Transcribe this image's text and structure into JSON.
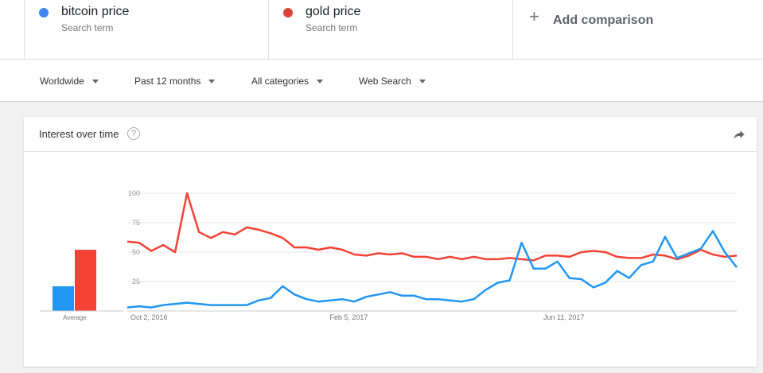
{
  "terms": [
    {
      "name": "bitcoin price",
      "sub": "Search term",
      "color": "#4285f4"
    },
    {
      "name": "gold price",
      "sub": "Search term",
      "color": "#db4437"
    }
  ],
  "add_comparison": "Add comparison",
  "filters": [
    "Worldwide",
    "Past 12 months",
    "All categories",
    "Web Search"
  ],
  "card": {
    "title": "Interest over time",
    "help": "?"
  },
  "average_label": "Average",
  "chart_data": {
    "type": "line",
    "title": "Interest over time",
    "ylim": [
      0,
      100
    ],
    "yticks": [
      25,
      50,
      75,
      100
    ],
    "xtick_labels": [
      "Oct 2, 2016",
      "Feb 5, 2017",
      "Jun 11, 2017"
    ],
    "xtick_index": [
      0,
      18,
      36
    ],
    "grid": true,
    "series": [
      {
        "name": "bitcoin price",
        "color": "#2196f3",
        "values": [
          3,
          4,
          3,
          5,
          6,
          7,
          6,
          5,
          5,
          5,
          5,
          9,
          11,
          21,
          14,
          10,
          8,
          9,
          10,
          8,
          12,
          14,
          16,
          13,
          13,
          10,
          10,
          9,
          8,
          10,
          18,
          24,
          26,
          58,
          36,
          36,
          42,
          28,
          27,
          20,
          24,
          34,
          28,
          39,
          42,
          63,
          45,
          49,
          53,
          68,
          50,
          37
        ]
      },
      {
        "name": "gold price",
        "color": "#f44336",
        "values": [
          59,
          58,
          51,
          56,
          50,
          100,
          67,
          62,
          67,
          65,
          71,
          69,
          66,
          62,
          54,
          54,
          52,
          54,
          52,
          48,
          47,
          49,
          48,
          49,
          46,
          46,
          44,
          46,
          44,
          46,
          44,
          44,
          45,
          44,
          43,
          47,
          47,
          46,
          50,
          51,
          50,
          46,
          45,
          45,
          48,
          47,
          44,
          47,
          52,
          48,
          46,
          47
        ]
      }
    ],
    "averages": [
      {
        "name": "bitcoin price",
        "value": 21,
        "color": "#2196f3"
      },
      {
        "name": "gold price",
        "value": 52,
        "color": "#f44336"
      }
    ]
  }
}
